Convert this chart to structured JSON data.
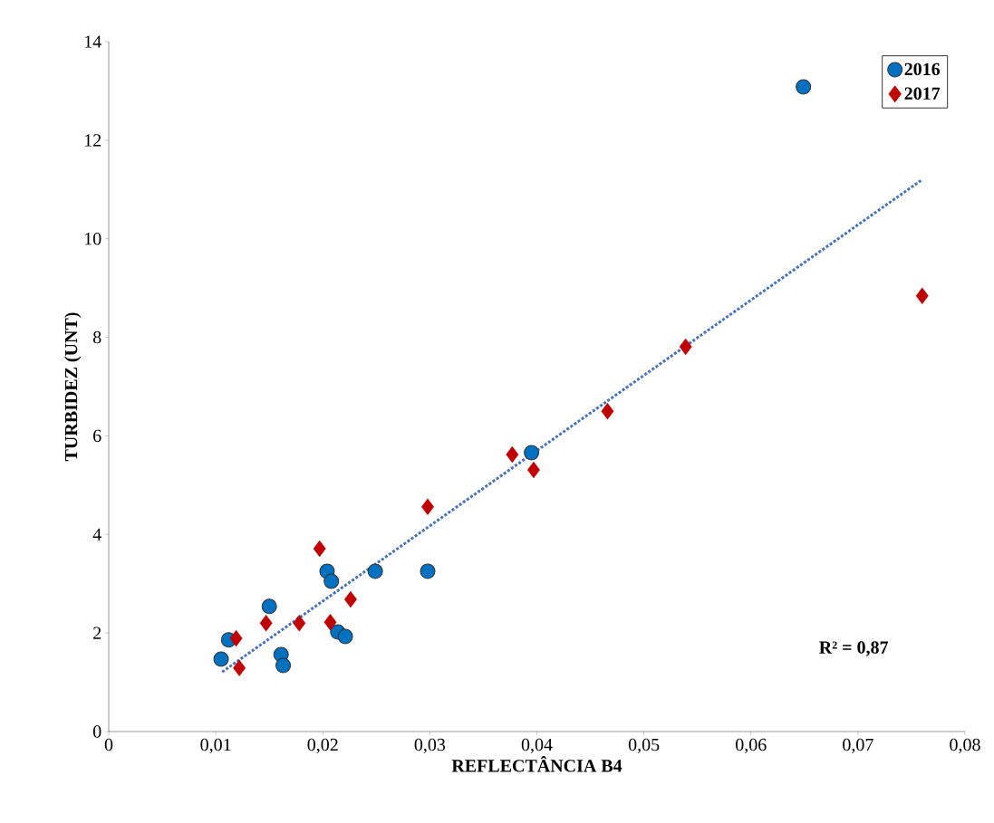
{
  "chart_data": {
    "type": "scatter",
    "xlabel": "REFLECTÂNCIA B4",
    "ylabel": "TURBIDEZ (UNT)",
    "xlim": [
      0,
      0.08
    ],
    "ylim": [
      0,
      14
    ],
    "xticks": [
      0,
      {
        "value": 0.01,
        "label": "0,01"
      },
      {
        "value": 0.02,
        "label": "0,02"
      },
      {
        "value": 0.03,
        "label": "0,03"
      },
      {
        "value": 0.04,
        "label": "0,04"
      },
      {
        "value": 0.05,
        "label": "0,05"
      },
      {
        "value": 0.06,
        "label": "0,06"
      },
      {
        "value": 0.07,
        "label": "0,07"
      },
      {
        "value": 0.08,
        "label": "0,08"
      }
    ],
    "yticks": [
      0,
      2,
      4,
      6,
      8,
      10,
      12,
      14
    ],
    "legend": "top right",
    "annotations": [
      "R² = 0,87"
    ],
    "series": [
      {
        "name": "2016",
        "marker": "circle",
        "color": "#0070c0",
        "x": [
          0.0105,
          0.0112,
          0.015,
          0.0161,
          0.0163,
          0.0204,
          0.0208,
          0.0214,
          0.0221,
          0.0249,
          0.0298,
          0.0395,
          0.0649
        ],
        "values": [
          1.47,
          1.86,
          2.54,
          1.56,
          1.34,
          3.25,
          3.05,
          2.02,
          1.93,
          3.25,
          3.25,
          5.66,
          13.08
        ]
      },
      {
        "name": "2017",
        "marker": "diamond",
        "color": "#c00000",
        "x": [
          0.0119,
          0.0122,
          0.0147,
          0.0178,
          0.0197,
          0.0207,
          0.0226,
          0.0298,
          0.0377,
          0.0397,
          0.0466,
          0.0539,
          0.076
        ],
        "values": [
          1.89,
          1.29,
          2.2,
          2.2,
          3.71,
          2.22,
          2.68,
          4.56,
          5.62,
          5.31,
          6.5,
          7.81,
          8.84
        ]
      },
      {
        "type": "line",
        "marker": "none",
        "line_style": "dotted",
        "color": "#4472c4",
        "x": [
          0.0106,
          0.076
        ],
        "values": [
          1.21,
          11.2
        ]
      }
    ]
  }
}
